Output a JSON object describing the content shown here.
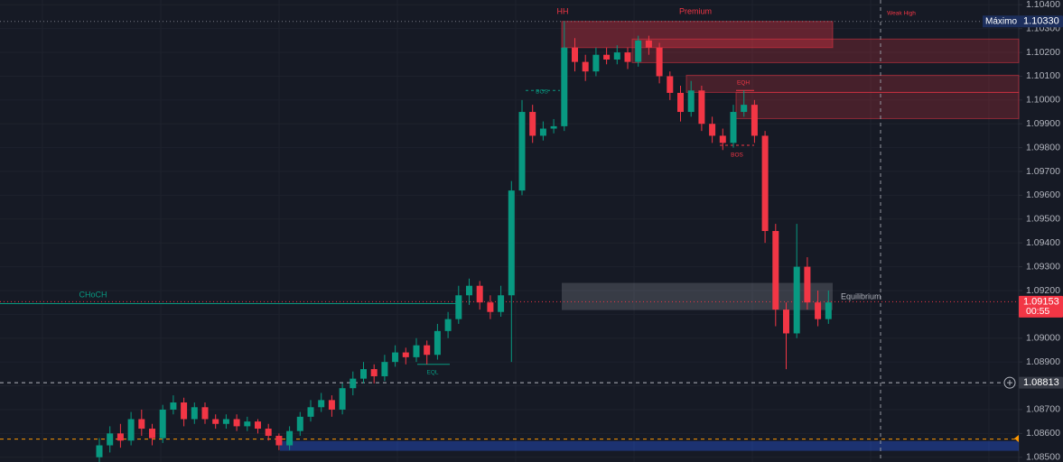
{
  "chart_data": {
    "type": "candlestick",
    "categories": [
      null,
      null,
      null,
      null,
      null,
      null,
      null,
      null,
      null,
      null,
      null,
      null,
      null,
      null,
      null,
      null,
      null,
      null,
      null,
      null,
      null,
      null,
      null,
      null,
      null,
      null,
      null,
      null,
      null,
      null,
      null,
      null,
      null,
      null,
      null,
      null,
      null,
      null,
      null,
      null,
      null,
      null,
      null,
      null,
      null,
      null,
      null,
      null,
      null,
      null,
      null,
      null,
      null,
      null,
      null,
      null,
      null,
      null,
      null,
      null,
      null,
      null,
      null,
      null,
      null,
      null,
      null,
      null,
      null,
      null
    ],
    "open": [
      1.085,
      1.0855,
      1.086,
      1.0857,
      1.0866,
      1.0862,
      1.0858,
      1.087,
      1.0873,
      1.0866,
      1.0871,
      1.0866,
      1.0864,
      1.0866,
      1.0863,
      1.0865,
      1.0862,
      1.0859,
      1.0855,
      1.0861,
      1.0867,
      1.0871,
      1.0874,
      1.087,
      1.0879,
      1.0883,
      1.0887,
      1.0884,
      1.089,
      1.0894,
      1.0892,
      1.0897,
      1.0893,
      1.0903,
      1.0908,
      1.0918,
      1.0922,
      1.0915,
      1.0911,
      1.0918,
      1.0962,
      1.0995,
      1.0985,
      1.0988,
      1.0989,
      1.1022,
      1.1016,
      1.1012,
      1.1019,
      1.1017,
      1.102,
      1.1016,
      1.1025,
      1.1022,
      1.101,
      1.1003,
      1.0995,
      1.1004,
      1.099,
      1.0985,
      1.0982,
      1.0995,
      1.0998,
      1.0985,
      1.0945,
      1.0912,
      1.0902,
      1.093,
      1.0915,
      1.0908
    ],
    "high": [
      1.0858,
      1.0863,
      1.0864,
      1.0869,
      1.087,
      1.0864,
      1.0872,
      1.0876,
      1.0875,
      1.0873,
      1.0873,
      1.0868,
      1.0868,
      1.0868,
      1.0867,
      1.0866,
      1.0864,
      1.086,
      1.0863,
      1.0869,
      1.0874,
      1.0877,
      1.0876,
      1.0881,
      1.0886,
      1.089,
      1.0889,
      1.0893,
      1.0897,
      1.0896,
      1.09,
      1.0899,
      1.0906,
      1.0911,
      1.0922,
      1.0925,
      1.0924,
      1.0918,
      1.0922,
      1.0966,
      1.1,
      1.0998,
      1.0991,
      1.0992,
      1.1033,
      1.1026,
      1.1019,
      1.1022,
      1.1022,
      1.1023,
      1.1022,
      1.1027,
      1.1027,
      1.1024,
      1.1012,
      1.1006,
      1.1008,
      1.1006,
      1.0993,
      1.0988,
      1.0998,
      1.1004,
      1.1,
      1.0987,
      1.0948,
      1.0915,
      1.0948,
      1.0934,
      1.092,
      1.092
    ],
    "low": [
      1.0847,
      1.0852,
      1.0854,
      1.0855,
      1.0859,
      1.0855,
      1.0856,
      1.0868,
      1.0863,
      1.0864,
      1.0864,
      1.0862,
      1.0862,
      1.0861,
      1.0861,
      1.086,
      1.0857,
      1.0853,
      1.0853,
      1.0859,
      1.0865,
      1.0869,
      1.0867,
      1.0868,
      1.0876,
      1.0881,
      1.0881,
      1.0882,
      1.0888,
      1.0889,
      1.089,
      1.0889,
      1.0891,
      1.09,
      1.0906,
      1.0914,
      1.0912,
      1.0908,
      1.0909,
      1.089,
      1.096,
      1.0982,
      1.0983,
      1.0986,
      1.0987,
      1.1012,
      1.1008,
      1.101,
      1.1015,
      1.1015,
      1.1013,
      1.1014,
      1.1019,
      1.1007,
      1.1,
      1.0991,
      1.0993,
      1.0987,
      1.0982,
      1.0979,
      1.098,
      1.0993,
      1.0982,
      1.094,
      1.0905,
      1.0887,
      1.09,
      1.0912,
      1.0905,
      1.0906
    ],
    "close": [
      1.0855,
      1.086,
      1.0857,
      1.0866,
      1.0862,
      1.0858,
      1.087,
      1.0873,
      1.0866,
      1.0871,
      1.0866,
      1.0864,
      1.0866,
      1.0863,
      1.0865,
      1.0862,
      1.0859,
      1.0855,
      1.0861,
      1.0867,
      1.0871,
      1.0874,
      1.087,
      1.0879,
      1.0883,
      1.0887,
      1.0884,
      1.089,
      1.0894,
      1.0892,
      1.0897,
      1.0893,
      1.0903,
      1.0908,
      1.0918,
      1.0922,
      1.0915,
      1.0911,
      1.0918,
      1.0962,
      1.0995,
      1.0985,
      1.0988,
      1.0989,
      1.1022,
      1.1016,
      1.1012,
      1.1019,
      1.1017,
      1.102,
      1.1016,
      1.1025,
      1.1022,
      1.101,
      1.1003,
      1.0995,
      1.1004,
      1.099,
      1.0985,
      1.0982,
      1.0995,
      1.0998,
      1.0985,
      1.0945,
      1.0912,
      1.0902,
      1.093,
      1.0915,
      1.0908,
      1.0915
    ],
    "up_color": "#089981",
    "down_color": "#f23645",
    "ylim": [
      1.0848,
      1.1042
    ],
    "yticks": [
      {
        "value": 1.085,
        "label": "1.08500"
      },
      {
        "value": 1.086,
        "label": "1.08600"
      },
      {
        "value": 1.087,
        "label": "1.08700"
      },
      {
        "value": 1.088,
        "label": "1.08800"
      },
      {
        "value": 1.089,
        "label": "1.08900"
      },
      {
        "value": 1.09,
        "label": "1.09000"
      },
      {
        "value": 1.091,
        "label": "1.09100"
      },
      {
        "value": 1.092,
        "label": "1.09200"
      },
      {
        "value": 1.093,
        "label": "1.09300"
      },
      {
        "value": 1.094,
        "label": "1.09400"
      },
      {
        "value": 1.095,
        "label": "1.09500"
      },
      {
        "value": 1.096,
        "label": "1.09600"
      },
      {
        "value": 1.097,
        "label": "1.09700"
      },
      {
        "value": 1.098,
        "label": "1.09800"
      },
      {
        "value": 1.099,
        "label": "1.09900"
      },
      {
        "value": 1.1,
        "label": "1.10000"
      },
      {
        "value": 1.101,
        "label": "1.10100"
      },
      {
        "value": 1.102,
        "label": "1.10200"
      },
      {
        "value": 1.103,
        "label": "1.10300"
      },
      {
        "value": 1.104,
        "label": "1.10400"
      }
    ],
    "grid": true,
    "zones": [
      {
        "low": 1.1022,
        "high": 1.1033,
        "color": "rgba(242,54,69,0.35)"
      },
      {
        "low": 1.10157,
        "high": 1.10256,
        "color": "rgba(242,54,69,0.22)"
      },
      {
        "low": 1.10032,
        "high": 1.10104,
        "color": "rgba(242,54,69,0.22)"
      },
      {
        "low": 1.09922,
        "high": 1.10032,
        "color": "rgba(242,54,69,0.22)"
      },
      {
        "low": 1.09118,
        "high": 1.09232,
        "color": "rgba(178,181,190,0.22)"
      },
      {
        "low": 1.08527,
        "high": 1.08568,
        "color": "rgba(41,98,255,0.35)"
      }
    ],
    "levels": [
      {
        "value": 1.1033,
        "color": "#787b86",
        "dash": "1 3"
      },
      {
        "value": 1.09145,
        "color": "#089981",
        "dash": ""
      },
      {
        "value": 1.09153,
        "color": "#f23645",
        "dash": "1 3"
      },
      {
        "value": 1.08813,
        "color": "#b2b5be",
        "dash": "4 4"
      },
      {
        "value": 1.08576,
        "color": "#ff9800",
        "dash": "4 4"
      },
      {
        "value": 1.1004,
        "color": "#089981",
        "dash": "3 3"
      },
      {
        "value": 1.0981,
        "color": "#f23645",
        "dash": "3 3"
      },
      {
        "value": 1.1004,
        "color": "#f23645",
        "dash": ""
      },
      {
        "value": 1.0889,
        "color": "#089981",
        "dash": ""
      }
    ],
    "annotations": [
      {
        "text": "HH",
        "color": "#f23645"
      },
      {
        "text": "Premium",
        "color": "#f23645"
      },
      {
        "text": "Weak High",
        "color": "#f23645"
      },
      {
        "text": "EQH",
        "color": "#f23645"
      },
      {
        "text": "BOS",
        "color": "#089981"
      },
      {
        "text": "BOS",
        "color": "#f23645"
      },
      {
        "text": "CHoCH",
        "color": "#089981"
      },
      {
        "text": "EQL",
        "color": "#089981"
      },
      {
        "text": "Equilibrium",
        "color": "#b2b5be"
      }
    ],
    "price_labels": [
      {
        "name": "Máximo",
        "value": 1.1033,
        "label": "1.10330",
        "color": "#1c2e5c"
      },
      {
        "value": 1.09153,
        "label": "1.09153",
        "timer": "00:55",
        "color": "#f23645"
      },
      {
        "value": 1.08813,
        "label": "1.08813",
        "color": "#363a45"
      }
    ]
  }
}
